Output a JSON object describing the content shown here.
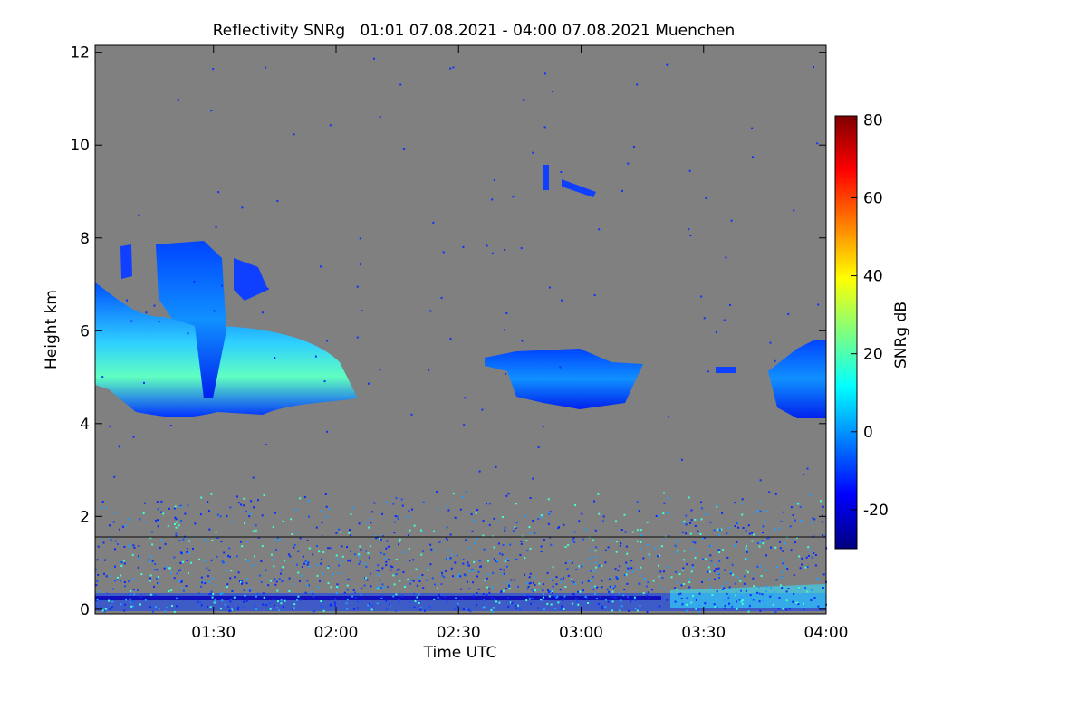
{
  "chart_data": {
    "type": "heatmap",
    "title": "Reflectivity SNRg   01:01 07.08.2021 - 04:00 07.08.2021 Muenchen",
    "x_label": "Time UTC",
    "y_label": "Height km",
    "colorbar_label": "SNRg dB",
    "xlim": [
      61,
      240
    ],
    "xticks": [
      {
        "value": 90,
        "label": "01:30"
      },
      {
        "value": 120,
        "label": "02:00"
      },
      {
        "value": 150,
        "label": "02:30"
      },
      {
        "value": 180,
        "label": "03:00"
      },
      {
        "value": 210,
        "label": "03:30"
      },
      {
        "value": 240,
        "label": "04:00"
      }
    ],
    "ylim": [
      -0.1,
      12.15
    ],
    "yticks": [
      0,
      2,
      4,
      6,
      8,
      10,
      12
    ],
    "clim": [
      -30,
      81
    ],
    "cticks": [
      -20,
      0,
      20,
      40,
      60,
      80
    ],
    "colormap": [
      "#00007f",
      "#0000ff",
      "#007fff",
      "#00ffff",
      "#7fff7f",
      "#ffff00",
      "#ff7f00",
      "#ff0000",
      "#7f0000"
    ]
  }
}
